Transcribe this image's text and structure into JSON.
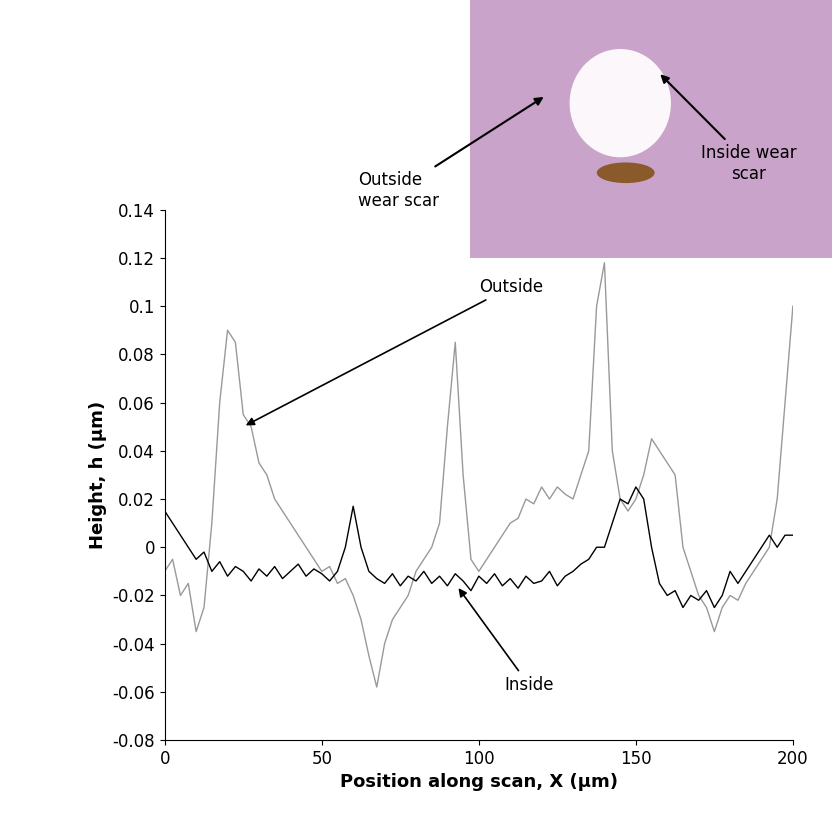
{
  "chart_data": {
    "type": "line",
    "x_label": "Position along scan, X (µm)",
    "y_label": "Height, h (µm)",
    "x": [
      0,
      2.5,
      5,
      7.5,
      10,
      12.5,
      15,
      17.5,
      20,
      22.5,
      25,
      27.5,
      30,
      32.5,
      35,
      37.5,
      40,
      42.5,
      45,
      47.5,
      50,
      52.5,
      55,
      57.5,
      60,
      62.5,
      65,
      67.5,
      70,
      72.5,
      75,
      77.5,
      80,
      82.5,
      85,
      87.5,
      90,
      92.5,
      95,
      97.5,
      100,
      102.5,
      105,
      107.5,
      110,
      112.5,
      115,
      117.5,
      120,
      122.5,
      125,
      127.5,
      130,
      132.5,
      135,
      137.5,
      140,
      142.5,
      145,
      147.5,
      150,
      152.5,
      155,
      157.5,
      160,
      162.5,
      165,
      167.5,
      170,
      172.5,
      175,
      177.5,
      180,
      182.5,
      185,
      187.5,
      190,
      192.5,
      195,
      197.5,
      200
    ],
    "series": [
      {
        "name": "Outside",
        "color": "#999999",
        "values": [
          -0.01,
          -0.005,
          -0.02,
          -0.015,
          -0.035,
          -0.025,
          0.01,
          0.06,
          0.09,
          0.085,
          0.055,
          0.05,
          0.035,
          0.03,
          0.02,
          0.015,
          0.01,
          0.005,
          0.0,
          -0.005,
          -0.01,
          -0.008,
          -0.015,
          -0.013,
          -0.02,
          -0.03,
          -0.045,
          -0.058,
          -0.04,
          -0.03,
          -0.025,
          -0.02,
          -0.01,
          -0.005,
          0.0,
          0.01,
          0.05,
          0.085,
          0.03,
          -0.005,
          -0.01,
          -0.005,
          0.0,
          0.005,
          0.01,
          0.012,
          0.02,
          0.018,
          0.025,
          0.02,
          0.025,
          0.022,
          0.02,
          0.03,
          0.04,
          0.1,
          0.118,
          0.04,
          0.02,
          0.015,
          0.02,
          0.03,
          0.045,
          0.04,
          0.035,
          0.03,
          0.0,
          -0.01,
          -0.02,
          -0.025,
          -0.035,
          -0.025,
          -0.02,
          -0.022,
          -0.015,
          -0.01,
          -0.005,
          0.0,
          0.02,
          0.06,
          0.1
        ]
      },
      {
        "name": "Inside",
        "color": "#000000",
        "values": [
          0.015,
          0.01,
          0.005,
          0.0,
          -0.005,
          -0.002,
          -0.01,
          -0.006,
          -0.012,
          -0.008,
          -0.01,
          -0.014,
          -0.009,
          -0.012,
          -0.008,
          -0.013,
          -0.01,
          -0.007,
          -0.012,
          -0.009,
          -0.011,
          -0.014,
          -0.01,
          0.0,
          0.017,
          0.0,
          -0.01,
          -0.013,
          -0.015,
          -0.011,
          -0.016,
          -0.012,
          -0.014,
          -0.01,
          -0.015,
          -0.012,
          -0.016,
          -0.011,
          -0.014,
          -0.018,
          -0.012,
          -0.015,
          -0.011,
          -0.016,
          -0.013,
          -0.017,
          -0.012,
          -0.015,
          -0.014,
          -0.01,
          -0.016,
          -0.012,
          -0.01,
          -0.007,
          -0.005,
          0.0,
          0.0,
          0.01,
          0.02,
          0.018,
          0.025,
          0.02,
          0.0,
          -0.015,
          -0.02,
          -0.018,
          -0.025,
          -0.02,
          -0.022,
          -0.018,
          -0.025,
          -0.02,
          -0.01,
          -0.015,
          -0.01,
          -0.005,
          0.0,
          0.005,
          0.0,
          0.005,
          0.005
        ]
      }
    ],
    "xlim": [
      0,
      200
    ],
    "xticks": [
      0,
      50,
      100,
      150,
      200
    ],
    "ylim": [
      -0.08,
      0.14
    ],
    "yticks": [
      -0.08,
      -0.06,
      -0.04,
      -0.02,
      0,
      0.02,
      0.04,
      0.06,
      0.08,
      0.1,
      0.12,
      0.14
    ],
    "grid": false,
    "inset_labels": [
      "Outside\nwear scar",
      "Inside wear\nscar"
    ]
  }
}
